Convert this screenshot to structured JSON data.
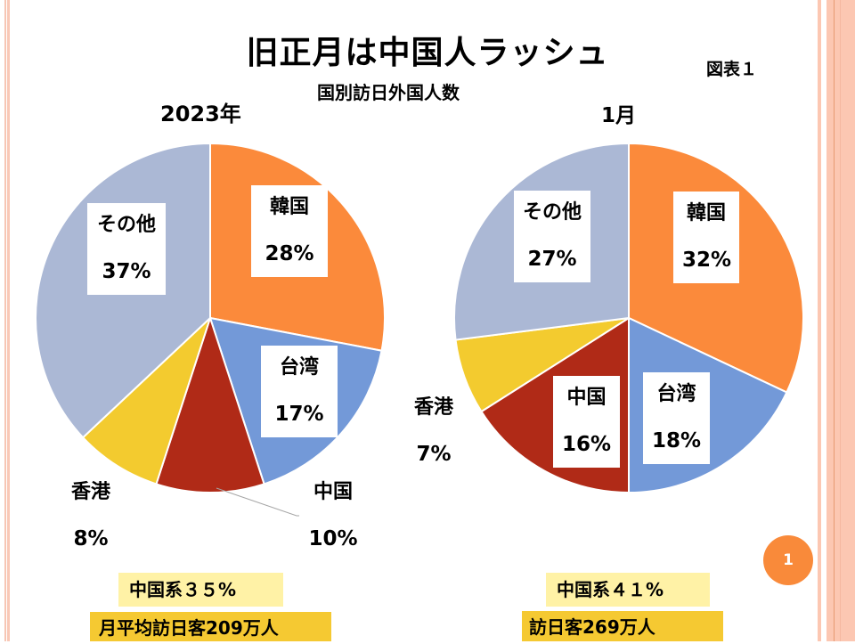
{
  "title": "旧正月は中国人ラッシュ",
  "subtitle": "国別訪日外国人数",
  "figure_label": "図表１",
  "page_number": "1",
  "colors": {
    "韓国": "#fb8a3b",
    "台湾": "#7399d8",
    "中国": "#b02a17",
    "香港": "#f3cb2f",
    "その他": "#abb8d5",
    "accent": "#f98a3a",
    "note_light": "#fff2a6",
    "note_dark": "#f5c932"
  },
  "notes": {
    "left_share": "中国系３５%",
    "left_visitors": "月平均訪日客209万人",
    "right_share": "中国系４１%",
    "right_visitors": "訪日客269万人"
  },
  "chart_data": [
    {
      "type": "pie",
      "title": "2023年",
      "categories": [
        "韓国",
        "台湾",
        "中国",
        "香港",
        "その他"
      ],
      "values": [
        28,
        17,
        10,
        8,
        37
      ],
      "labels": [
        "28%",
        "17%",
        "10%",
        "8%",
        "37%"
      ],
      "unit": "%",
      "direction": "clockwise-from-top"
    },
    {
      "type": "pie",
      "title": "1月",
      "categories": [
        "韓国",
        "台湾",
        "中国",
        "香港",
        "その他"
      ],
      "values": [
        32,
        18,
        16,
        7,
        27
      ],
      "labels": [
        "32%",
        "18%",
        "16%",
        "7%",
        "27%"
      ],
      "unit": "%",
      "direction": "clockwise-from-top"
    }
  ]
}
